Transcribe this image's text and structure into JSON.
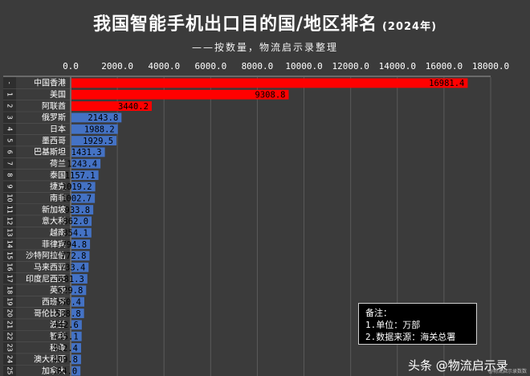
{
  "header": {
    "title": "我国智能手机出口目的国/地区排名",
    "year": "(2024年)",
    "subtitle": "——按数量，物流启示录整理"
  },
  "notes": {
    "heading": "备注：",
    "line1": "1.单位：万部",
    "line2": "2.数据来源：海关总署"
  },
  "watermark": {
    "main": "头条 @物流启示录",
    "small": "@物流启示录数数"
  },
  "chart_data": {
    "type": "bar",
    "orientation": "horizontal",
    "title": "我国智能手机出口目的国/地区排名",
    "subtitle": "——按数量，物流启示录整理",
    "unit": "万部",
    "xlim": [
      0,
      18000
    ],
    "x_ticks": [
      "0.0",
      "2000.0",
      "4000.0",
      "6000.0",
      "8000.0",
      "10000.0",
      "12000.0",
      "14000.0",
      "16000.0",
      "18000.0"
    ],
    "grid": "vertical",
    "colors": {
      "top3": "#ff0000",
      "rest": "#4472c4"
    },
    "ranks": [
      "-",
      "1",
      "2",
      "3",
      "4",
      "5",
      "6",
      "7",
      "8",
      "9",
      "10",
      "11",
      "12",
      "13",
      "14",
      "15",
      "16",
      "17",
      "18",
      "19",
      "20",
      "21",
      "22",
      "23",
      "24",
      "25"
    ],
    "categories": [
      "中国香港",
      "美国",
      "阿联酋",
      "俄罗斯",
      "日本",
      "墨西哥",
      "巴基斯坦",
      "荷兰",
      "泰国",
      "捷克",
      "南非",
      "新加坡",
      "意大利",
      "越南",
      "菲律宾",
      "沙特阿拉伯",
      "马来西亚",
      "印度尼西亚",
      "英国",
      "西班牙",
      "哥伦比亚",
      "波兰",
      "智利",
      "秘鲁",
      "澳大利亚",
      "加拿大"
    ],
    "values": [
      16981.4,
      9308.8,
      3440.2,
      2143.8,
      1988.2,
      1929.5,
      1431.3,
      1243.4,
      1157.1,
      1019.2,
      1002.7,
      933.8,
      862.0,
      854.1,
      794.8,
      772.8,
      733.4,
      681.3,
      629.8,
      550.4,
      538.8,
      442.6,
      435.1,
      412.4,
      409.8,
      384.0
    ],
    "value_labels": [
      "16981.4",
      "9308.8",
      "3440.2",
      "2143.8",
      "1988.2",
      "1929.5",
      "1431.3",
      "1243.4",
      "1157.1",
      "1019.2",
      "1002.7",
      "933.8",
      "862.0",
      "854.1",
      "794.8",
      "772.8",
      "733.4",
      "681.3",
      "629.8",
      "550.4",
      "538.8",
      "442.6",
      "435.1",
      "412.4",
      "409.8",
      "384.0"
    ]
  }
}
